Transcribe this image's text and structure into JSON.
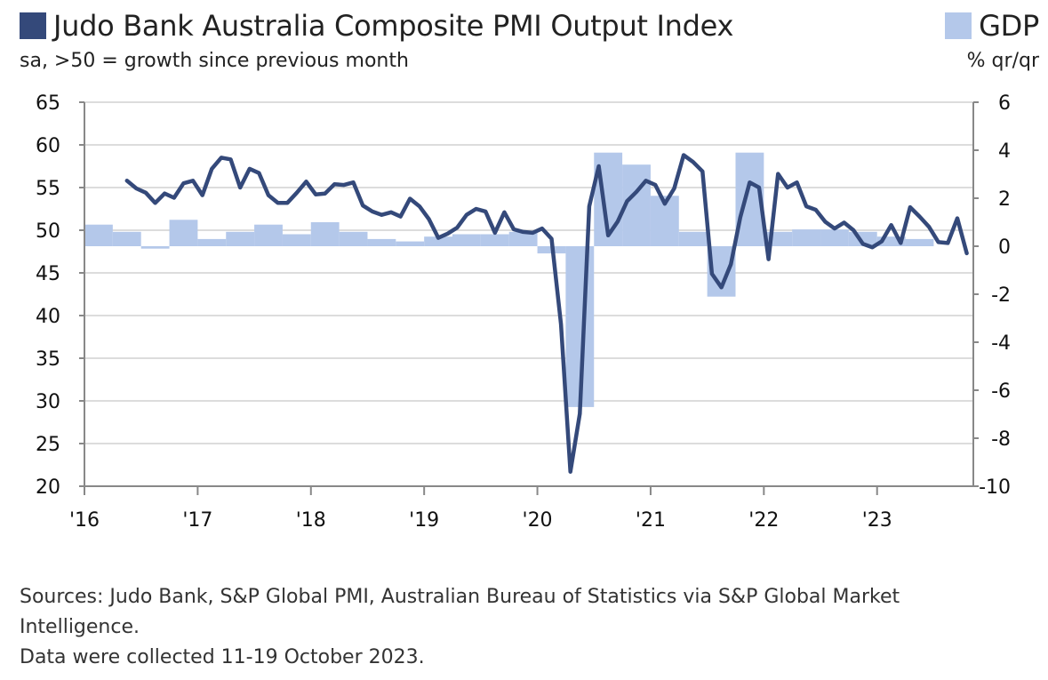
{
  "legend": {
    "line_label": "Judo Bank Australia Composite PMI Output Index",
    "line_sub": "sa, >50 = growth since previous month",
    "bar_label": "GDP",
    "bar_sub": "% qr/qr"
  },
  "footer": {
    "line1": "Sources: Judo Bank, S&P Global PMI, Australian Bureau of Statistics via S&P Global Market Intelligence.",
    "line2": "Data were collected 11-19 October 2023."
  },
  "colors": {
    "line": "#34497a",
    "bars": "#b4c8ea",
    "grid": "#d0d0d0",
    "axis": "#888888"
  },
  "chart_data": {
    "type": "line+bar",
    "x_tick_labels": [
      "'16",
      "'17",
      "'18",
      "'19",
      "'20",
      "'21",
      "'22",
      "'23"
    ],
    "x_tick_years": [
      2016,
      2017,
      2018,
      2019,
      2020,
      2021,
      2022,
      2023
    ],
    "x_range": [
      2016.0,
      2023.85
    ],
    "left_axis": {
      "label": "sa, >50 = growth since previous month",
      "ylim": [
        20,
        65
      ],
      "ticks": [
        20,
        25,
        30,
        35,
        40,
        45,
        50,
        55,
        60,
        65
      ]
    },
    "right_axis": {
      "label": "% qr/qr",
      "ylim": [
        -10,
        6
      ],
      "ticks": [
        -10,
        -8,
        -6,
        -4,
        -2,
        0,
        2,
        4,
        6
      ]
    },
    "series": [
      {
        "name": "Judo Bank Australia Composite PMI Output Index",
        "axis": "left",
        "type": "line",
        "start": [
          2016,
          5
        ],
        "frequency": "monthly",
        "values": [
          55.8,
          54.9,
          54.4,
          53.2,
          54.3,
          53.8,
          55.5,
          55.8,
          54.1,
          57.2,
          58.5,
          58.3,
          55.0,
          57.2,
          56.7,
          54.1,
          53.2,
          53.2,
          54.4,
          55.7,
          54.2,
          54.3,
          55.4,
          55.3,
          55.6,
          52.9,
          52.2,
          51.8,
          52.1,
          51.6,
          53.7,
          52.8,
          51.3,
          49.1,
          49.6,
          50.3,
          51.8,
          52.5,
          52.2,
          49.7,
          52.1,
          50.1,
          49.8,
          49.7,
          50.2,
          49.0,
          39.0,
          21.7,
          28.5,
          52.8,
          57.5,
          49.4,
          51.0,
          53.4,
          54.5,
          55.8,
          55.3,
          53.1,
          54.9,
          58.8,
          58.0,
          56.9,
          44.9,
          43.3,
          46.0,
          51.5,
          55.6,
          55.0,
          46.6,
          56.6,
          55.0,
          55.6,
          52.8,
          52.4,
          51.0,
          50.2,
          50.9,
          50.0,
          48.4,
          48.0,
          48.7,
          50.6,
          48.5,
          52.7,
          51.6,
          50.4,
          48.6,
          48.5,
          51.4,
          47.3
        ]
      },
      {
        "name": "GDP",
        "axis": "right",
        "type": "bar",
        "start": [
          2016,
          1
        ],
        "frequency": "quarterly",
        "values": [
          0.9,
          0.6,
          -0.1,
          1.1,
          0.3,
          0.6,
          0.9,
          0.5,
          1.0,
          0.6,
          0.3,
          0.2,
          0.4,
          0.5,
          0.5,
          0.6,
          -0.3,
          -6.7,
          3.9,
          3.4,
          2.1,
          0.6,
          -2.1,
          3.9,
          0.6,
          0.7,
          0.7,
          0.6,
          0.4,
          0.3
        ]
      }
    ]
  }
}
